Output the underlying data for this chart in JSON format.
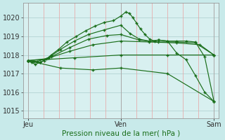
{
  "bg_color": "#c8eaea",
  "plot_bg_color": "#d8f0f0",
  "vgrid_color": "#e8a0a0",
  "hgrid_color": "#b8d8d8",
  "line_color": "#1a6e1a",
  "marker": "+",
  "title": "Pression niveau de la mer( hPa )",
  "title_color": "#1a6e1a",
  "ylim": [
    1014.6,
    1020.8
  ],
  "yticks": [
    1015,
    1016,
    1017,
    1018,
    1019,
    1020
  ],
  "xtick_labels": [
    "Jeu",
    "Ven",
    "Sam"
  ],
  "xtick_pos": [
    0,
    1,
    2
  ],
  "xlim": [
    -0.05,
    2.05
  ],
  "lines": [
    {
      "x": [
        0,
        0.04,
        0.08,
        0.13,
        0.18,
        0.25,
        0.33,
        0.42,
        0.52,
        0.62,
        0.72,
        0.82,
        0.92,
        1.0,
        1.05,
        1.09,
        1.13,
        1.17,
        1.21,
        1.26,
        1.31,
        1.36,
        1.41,
        1.5,
        1.6,
        1.7,
        1.8,
        1.9,
        2.0
      ],
      "y": [
        1017.7,
        1017.6,
        1017.5,
        1017.6,
        1017.7,
        1018.0,
        1018.3,
        1018.7,
        1019.0,
        1019.3,
        1019.55,
        1019.75,
        1019.85,
        1020.1,
        1020.3,
        1020.25,
        1020.0,
        1019.7,
        1019.4,
        1019.1,
        1018.85,
        1018.75,
        1018.8,
        1018.75,
        1018.1,
        1017.75,
        1016.9,
        1016.0,
        1015.5
      ]
    },
    {
      "x": [
        0,
        0.06,
        0.13,
        0.22,
        0.35,
        0.5,
        0.65,
        0.82,
        1.0,
        1.1,
        1.2,
        1.3,
        1.4,
        1.5,
        1.6,
        1.7,
        1.8,
        1.9,
        2.0
      ],
      "y": [
        1017.7,
        1017.65,
        1017.6,
        1017.85,
        1018.3,
        1018.75,
        1019.1,
        1019.35,
        1019.6,
        1019.15,
        1018.85,
        1018.75,
        1018.8,
        1018.75,
        1018.75,
        1018.75,
        1018.7,
        1017.9,
        1015.5
      ]
    },
    {
      "x": [
        0,
        0.1,
        0.25,
        0.45,
        0.65,
        0.85,
        1.0,
        1.2,
        1.4,
        1.6,
        1.8,
        2.0
      ],
      "y": [
        1017.7,
        1017.65,
        1017.9,
        1018.4,
        1018.85,
        1019.05,
        1019.1,
        1018.8,
        1018.7,
        1018.7,
        1018.65,
        1018.0
      ]
    },
    {
      "x": [
        0,
        0.2,
        0.45,
        0.7,
        1.0,
        1.3,
        1.6,
        1.85,
        2.0
      ],
      "y": [
        1017.7,
        1017.8,
        1018.2,
        1018.55,
        1018.75,
        1018.7,
        1018.65,
        1018.55,
        1018.0
      ]
    },
    {
      "x": [
        0,
        0.5,
        1.0,
        1.5,
        2.0
      ],
      "y": [
        1017.7,
        1017.85,
        1018.0,
        1018.0,
        1018.0
      ]
    },
    {
      "x": [
        0,
        0.35,
        0.7,
        1.0,
        1.5,
        2.0
      ],
      "y": [
        1017.7,
        1017.3,
        1017.2,
        1017.3,
        1017.0,
        1015.5
      ]
    }
  ]
}
